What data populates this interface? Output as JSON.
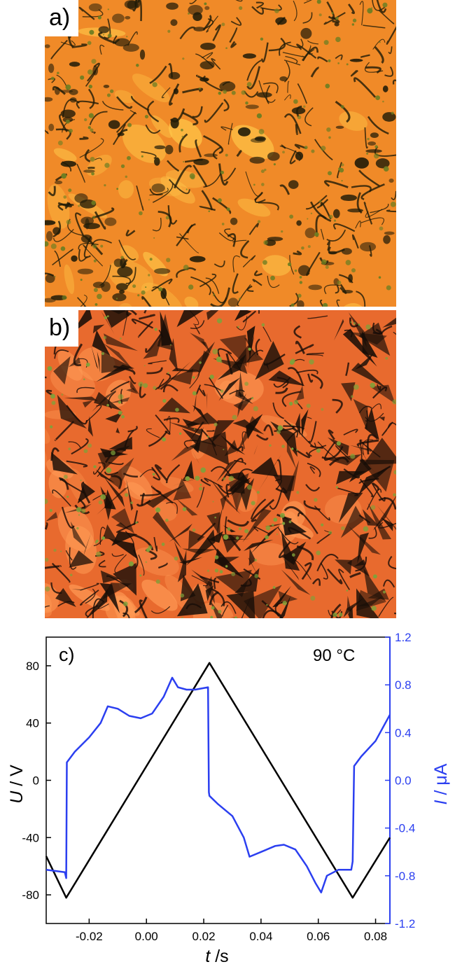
{
  "panels": [
    {
      "label": "a)",
      "description_colors": {
        "base": "#f08a28",
        "light": "#ffc94a",
        "dark": "#1e1a08",
        "green": "#6f7e22"
      }
    },
    {
      "label": "b)",
      "description_colors": {
        "base": "#e86a2e",
        "light": "#ff9a55",
        "dark": "#160d07",
        "green": "#7fa13a"
      }
    }
  ],
  "chart_data": {
    "type": "line",
    "panel_label": "c)",
    "annotation": "90 °C",
    "xlabel_var": "t",
    "xlabel_unit": " /s",
    "ylabel_left_var": "U",
    "ylabel_left_unit": " / V",
    "ylabel_right_var": "I",
    "ylabel_right_unit": " / μA",
    "xlim": [
      -0.035,
      0.085
    ],
    "ylim_left": [
      -100,
      100
    ],
    "ylim_right": [
      -1.2,
      1.2
    ],
    "x_ticks": [
      "-0.02",
      "0.00",
      "0.02",
      "0.04",
      "0.06",
      "0.08"
    ],
    "y_left_ticks": [
      "80",
      "40",
      "0",
      "-40",
      "-80"
    ],
    "y_right_ticks": [
      "1.2",
      "0.8",
      "0.4",
      "0.0",
      "-0.4",
      "-0.8",
      "-1.2"
    ],
    "colors": {
      "voltage": "#000000",
      "current": "#2b3ff0"
    },
    "series": [
      {
        "axis": "left",
        "x": [
          -0.035,
          -0.028,
          0.022,
          0.072,
          0.085
        ],
        "y": [
          -53,
          -82,
          82,
          -82,
          -40
        ]
      },
      {
        "axis": "right",
        "x": [
          -0.035,
          -0.0285,
          -0.028,
          -0.0278,
          -0.025,
          -0.02,
          -0.016,
          -0.0135,
          -0.01,
          -0.006,
          -0.002,
          0.002,
          0.006,
          0.009,
          0.011,
          0.014,
          0.017,
          0.0215,
          0.0218,
          0.022,
          0.025,
          0.03,
          0.034,
          0.036,
          0.04,
          0.045,
          0.048,
          0.052,
          0.056,
          0.059,
          0.061,
          0.063,
          0.067,
          0.0715,
          0.072,
          0.0725,
          0.075,
          0.08,
          0.085
        ],
        "y": [
          -0.75,
          -0.77,
          -0.82,
          0.15,
          0.24,
          0.36,
          0.48,
          0.62,
          0.6,
          0.54,
          0.52,
          0.56,
          0.7,
          0.86,
          0.78,
          0.76,
          0.76,
          0.78,
          -0.1,
          -0.13,
          -0.2,
          -0.3,
          -0.48,
          -0.64,
          -0.6,
          -0.55,
          -0.54,
          -0.58,
          -0.72,
          -0.86,
          -0.94,
          -0.8,
          -0.75,
          -0.75,
          -0.68,
          0.12,
          0.2,
          0.33,
          0.55
        ]
      }
    ]
  }
}
